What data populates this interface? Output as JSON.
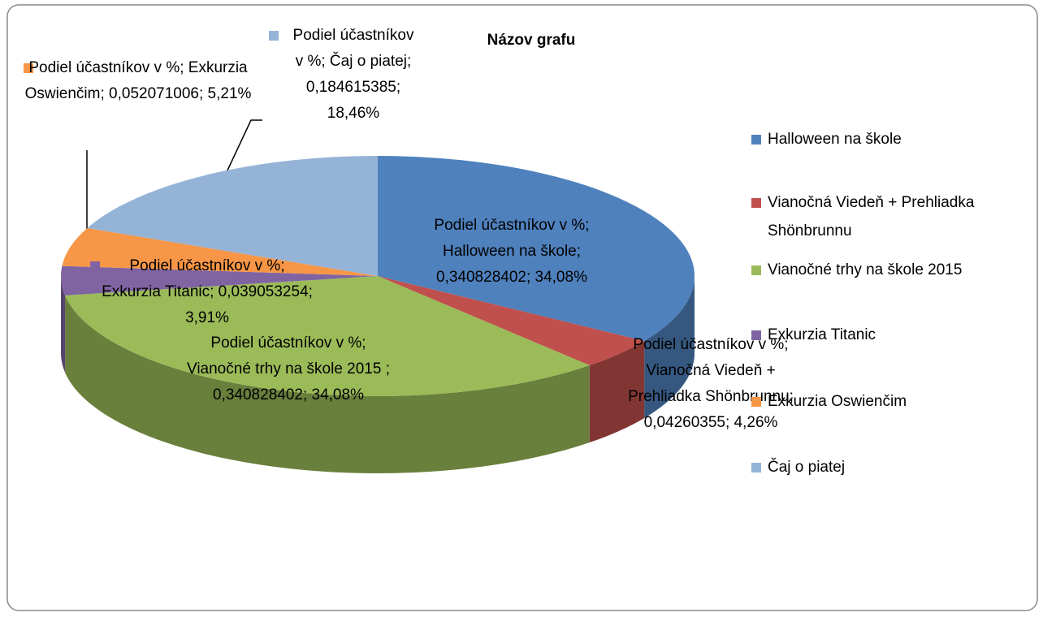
{
  "chart_data": {
    "type": "pie3d",
    "title": "Názov grafu",
    "series_name": "Podiel účastníkov v %",
    "categories": [
      "Halloween na škole",
      "Vianočná Viedeň + Prehliadka Shönbrunnu",
      "Vianočné trhy na škole 2015",
      "Exkurzia Titanic",
      "Exkurzia Oswienčim",
      "Čaj o piatej"
    ],
    "values": [
      0.340828402,
      0.04260355,
      0.340828402,
      0.039053254,
      0.052071006,
      0.184615385
    ],
    "value_labels": [
      "Podiel účastníkov v %; Halloween na škole; 0,340828402; 34,08%",
      "Podiel účastníkov v %; Vianočná Viedeň + Prehliadka Shönbrunnu; 0,04260355; 4,26%",
      "Podiel účastníkov v %; Vianočné trhy na škole 2015 ; 0,340828402; 34,08%",
      "Podiel účastníkov v %; Exkurzia Titanic; 0,039053254; 3,91%",
      "Podiel účastníkov v %; Exkurzia Oswienčim; 0,052071006; 5,21%",
      "Podiel účastníkov v %; Čaj o piatej; 0,184615385; 18,46%"
    ],
    "colors": [
      "#4f81bd",
      "#c0504d",
      "#9bbb59",
      "#8064a2",
      "#f79646",
      "#95b3d7"
    ],
    "legend": "right"
  }
}
